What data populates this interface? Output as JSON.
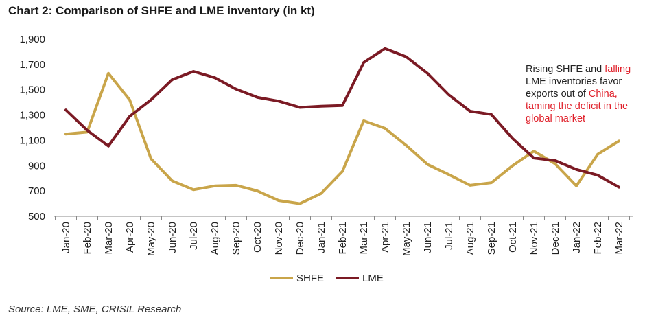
{
  "chart_data": {
    "type": "line",
    "title": "Chart 2: Comparison of SHFE and LME inventory (in kt)",
    "xlabel": "",
    "ylabel": "",
    "ylim": [
      500,
      1900
    ],
    "yticks": [
      "1,900",
      "1,700",
      "1,500",
      "1,300",
      "1,100",
      "900",
      "700",
      "500"
    ],
    "ytick_values": [
      1900,
      1700,
      1500,
      1300,
      1100,
      900,
      700,
      500
    ],
    "categories": [
      "Jan-20",
      "Feb-20",
      "Mar-20",
      "Apr-20",
      "May-20",
      "Jun-20",
      "Jul-20",
      "Aug-20",
      "Sep-20",
      "Oct-20",
      "Nov-20",
      "Dec-20",
      "Jan-21",
      "Feb-21",
      "Mar-21",
      "Apr-21",
      "May-21",
      "Jun-21",
      "Jul-21",
      "Aug-21",
      "Sep-21",
      "Oct-21",
      "Nov-21",
      "Dec-21",
      "Jan-22",
      "Feb-22",
      "Mar-22"
    ],
    "series": [
      {
        "name": "SHFE",
        "color": "#c9a54a",
        "values": [
          1150,
          1165,
          1630,
          1420,
          955,
          780,
          710,
          740,
          745,
          700,
          625,
          600,
          680,
          855,
          1255,
          1195,
          1060,
          910,
          830,
          745,
          765,
          900,
          1015,
          915,
          740,
          990,
          1095
        ]
      },
      {
        "name": "LME",
        "color": "#7b1a24",
        "values": [
          1340,
          1180,
          1055,
          1290,
          1420,
          1580,
          1645,
          1595,
          1505,
          1440,
          1410,
          1360,
          1370,
          1375,
          1715,
          1825,
          1760,
          1630,
          1460,
          1330,
          1305,
          1115,
          960,
          940,
          870,
          825,
          730
        ]
      }
    ],
    "legend_position": "bottom-center",
    "grid": false
  },
  "annotation": {
    "part1": "Rising SHFE and ",
    "part2_red": "falling",
    "part3": " LME inventories favor exports out of ",
    "part4_red": "China, taming the deficit in the global market"
  },
  "source": "Source: LME, SME, CRISIL Research",
  "colors": {
    "shfe": "#c9a54a",
    "lme": "#7b1a24",
    "axis": "#888888",
    "highlight": "#e0202a"
  }
}
